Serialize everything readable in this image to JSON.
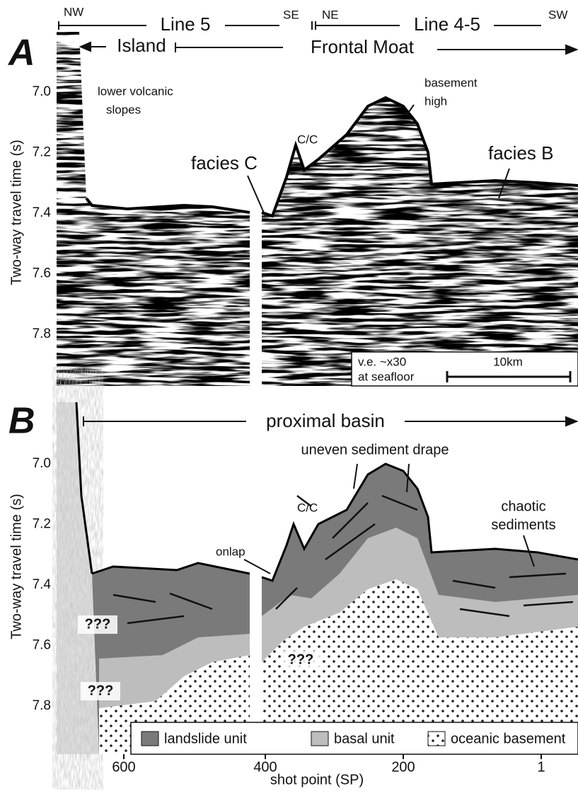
{
  "header": {
    "nw": "NW",
    "line5": "Line 5",
    "se": "SE",
    "ne": "NE",
    "line45": "Line 4-5",
    "sw": "SW"
  },
  "panel_a": {
    "letter": "A",
    "island": "Island",
    "frontal_moat": "Frontal Moat",
    "lower_volcanic": "lower volcanic",
    "slopes": "slopes",
    "basement": "basement",
    "high": "high",
    "cc": "C/C",
    "facies_c": "facies C",
    "facies_b": "facies B",
    "y_axis_label": "Two-way travel time (s)",
    "y_ticks": [
      "7.0",
      "7.2",
      "7.4",
      "7.6",
      "7.8"
    ],
    "scale_bar": {
      "ve": "v.e. ~x30",
      "seafloor": "at seafloor",
      "length": "10km"
    }
  },
  "panel_b": {
    "letter": "B",
    "proximal_basin": "proximal basin",
    "uneven": "uneven sediment drape",
    "cc": "C/C",
    "chaotic": "chaotic",
    "sediments": "sediments",
    "onlap": "onlap",
    "unknown": [
      "???",
      "???",
      "???"
    ],
    "y_axis_label": "Two-way travel time (s)",
    "y_ticks": [
      "7.0",
      "7.2",
      "7.4",
      "7.6",
      "7.8"
    ],
    "legend": [
      "landslide unit",
      "basal unit",
      "oceanic basement"
    ]
  },
  "x_axis": {
    "label": "shot point (SP)",
    "ticks": [
      "600",
      "400",
      "200",
      "1"
    ]
  }
}
